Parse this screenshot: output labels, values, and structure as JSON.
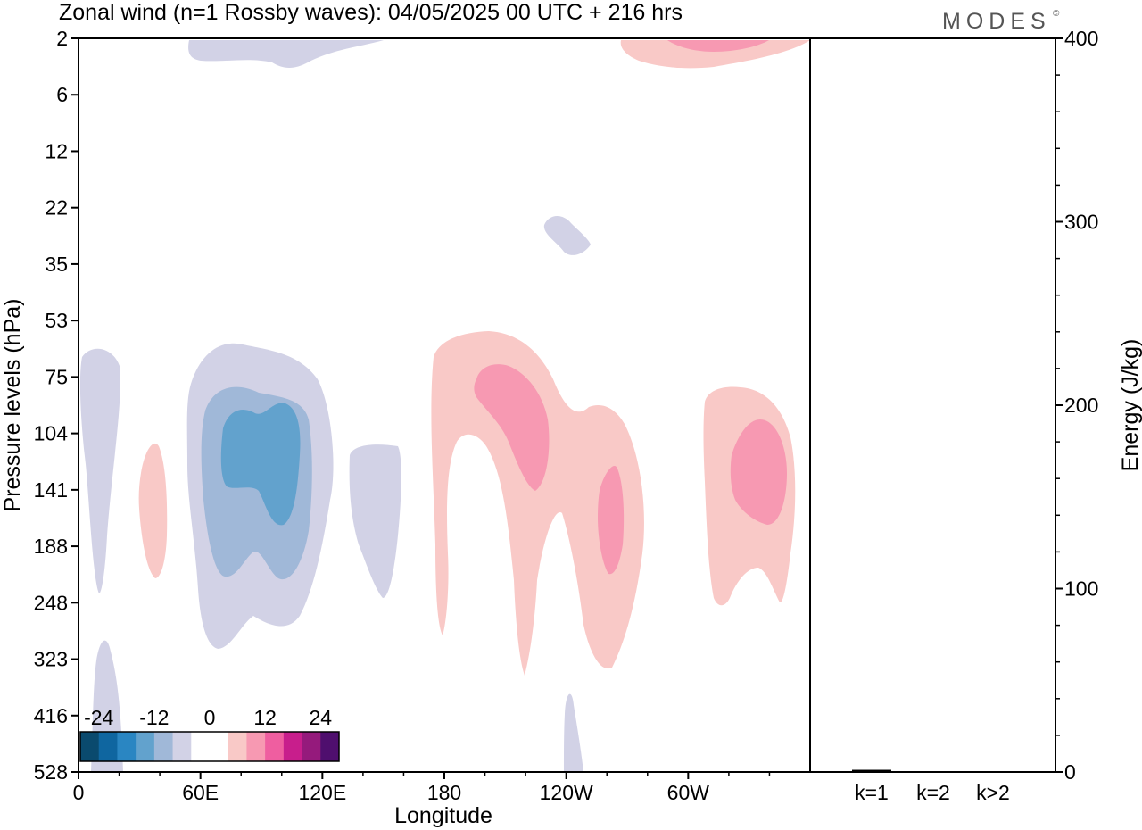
{
  "header": {
    "title": "Zonal wind (n=1 Rossby waves):  04/05/2025  00 UTC  + 216 hrs",
    "brand": "MODES",
    "brand_mark": "©"
  },
  "chart_data": [
    {
      "type": "heatmap",
      "xlabel": "Longitude",
      "ylabel": "Pressure levels (hPa)",
      "x_ticks": [
        "0",
        "60E",
        "120E",
        "180",
        "120W",
        "60W"
      ],
      "x_tick_values": [
        0,
        60,
        120,
        180,
        240,
        300
      ],
      "xlim": [
        0,
        360
      ],
      "y_ticks": [
        "2",
        "6",
        "12",
        "22",
        "35",
        "53",
        "75",
        "104",
        "141",
        "188",
        "248",
        "323",
        "416",
        "528"
      ],
      "colorbar": {
        "labels": [
          "-24",
          "-12",
          "0",
          "12",
          "24"
        ],
        "label_values": [
          -24,
          -12,
          0,
          12,
          24
        ],
        "colors": [
          "#0a4a6e",
          "#0f66a0",
          "#2a86c2",
          "#62a2cd",
          "#a0b8d8",
          "#d2d2e6",
          "#ffffff",
          "#ffffff",
          "#f9c9c7",
          "#f799b2",
          "#ef5ea0",
          "#c81e8c",
          "#951a7c",
          "#4f0f6e"
        ]
      },
      "features": [
        {
          "sign": "negative",
          "level": 1,
          "lon": [
            0,
            20
          ],
          "level_range": [
            "53",
            "248"
          ]
        },
        {
          "sign": "negative",
          "level": 1,
          "lon": [
            54,
            126
          ],
          "level_range": [
            "53",
            "323"
          ]
        },
        {
          "sign": "negative",
          "level": 2,
          "lon": [
            60,
            115
          ],
          "level_range": [
            "75",
            "248"
          ]
        },
        {
          "sign": "negative",
          "level": 3,
          "lon": [
            70,
            110
          ],
          "level_range": [
            "104",
            "188"
          ]
        },
        {
          "sign": "negative",
          "level": 1,
          "lon": [
            134,
            160
          ],
          "level_range": [
            "104",
            "248"
          ]
        },
        {
          "sign": "positive",
          "level": 1,
          "lon": [
            30,
            44
          ],
          "level_range": [
            "104",
            "248"
          ]
        },
        {
          "sign": "positive",
          "level": 1,
          "lon": [
            174,
            284
          ],
          "level_range": [
            "53",
            "323"
          ]
        },
        {
          "sign": "positive",
          "level": 2,
          "lon": [
            194,
            240
          ],
          "level_range": [
            "75",
            "141"
          ]
        },
        {
          "sign": "positive",
          "level": 2,
          "lon": [
            256,
            270
          ],
          "level_range": [
            "141",
            "248"
          ]
        },
        {
          "sign": "positive",
          "level": 1,
          "lon": [
            309,
            355
          ],
          "level_range": [
            "75",
            "248"
          ]
        },
        {
          "sign": "positive",
          "level": 2,
          "lon": [
            322,
            348
          ],
          "level_range": [
            "104",
            "188"
          ]
        },
        {
          "sign": "negative",
          "level": 1,
          "lon": [
            54,
            150
          ],
          "level_range": [
            "2",
            "6"
          ]
        },
        {
          "sign": "positive",
          "level": 1,
          "lon": [
            266,
            360
          ],
          "level_range": [
            "2",
            "6"
          ]
        },
        {
          "sign": "positive",
          "level": 2,
          "lon": [
            290,
            340
          ],
          "level_range": [
            "2",
            "2"
          ]
        },
        {
          "sign": "negative",
          "level": 1,
          "lon": [
            228,
            252
          ],
          "level_range": [
            "22",
            "35"
          ]
        },
        {
          "sign": "negative",
          "level": 1,
          "lon": [
            6,
            24
          ],
          "level_range": [
            "323",
            "528"
          ]
        },
        {
          "sign": "negative",
          "level": 1,
          "lon": [
            240,
            248
          ],
          "level_range": [
            "416",
            "528"
          ]
        }
      ]
    },
    {
      "type": "bar",
      "categories": [
        "k=1",
        "k=2",
        "k>2"
      ],
      "values": [
        1.2,
        0.4,
        0.4
      ],
      "ylabel": "Energy (J/kg)",
      "ylim": [
        0,
        400
      ],
      "y_ticks": [
        "0",
        "100",
        "200",
        "300",
        "400"
      ],
      "y_tick_values": [
        0,
        100,
        200,
        300,
        400
      ]
    }
  ]
}
